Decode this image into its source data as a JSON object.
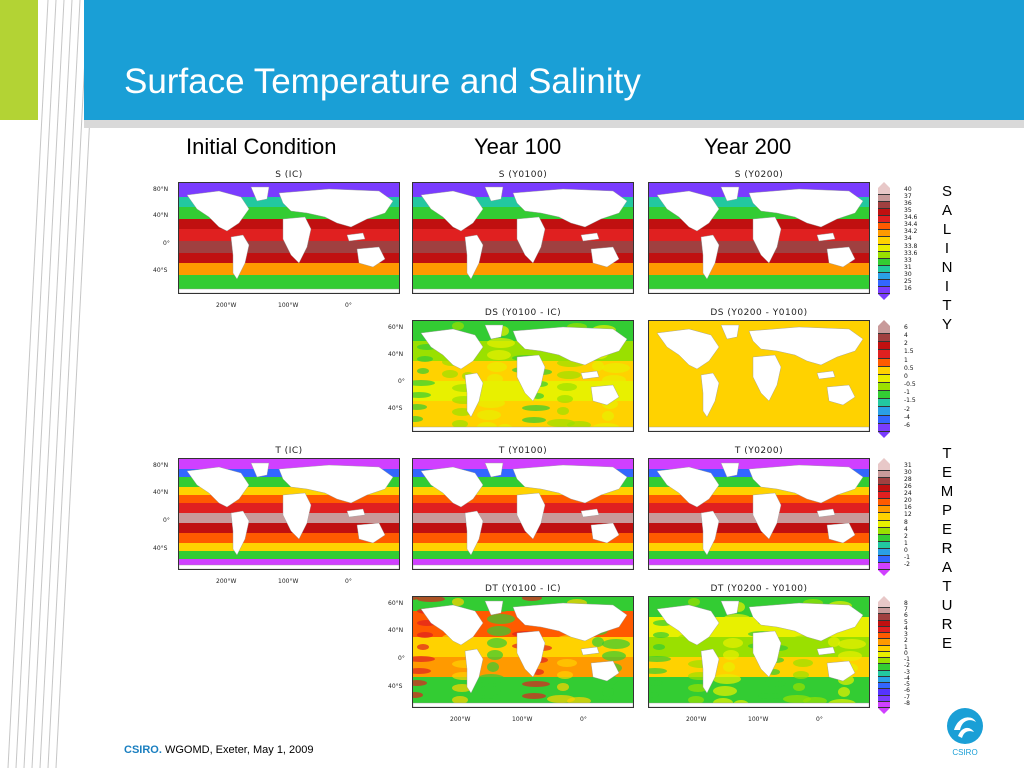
{
  "slide": {
    "title": "Surface Temperature and Salinity",
    "columns": [
      "Initial Condition",
      "Year 100",
      "Year 200"
    ],
    "vertical_salinity": [
      "S",
      "A",
      "L",
      "I",
      "N",
      "I",
      "T",
      "Y"
    ],
    "vertical_temperature": [
      "T",
      "E",
      "M",
      "P",
      "E",
      "R",
      "A",
      "T",
      "U",
      "R",
      "E"
    ]
  },
  "panels": [
    {
      "title": "S (IC)",
      "kind": "salinity"
    },
    {
      "title": "S (Y0100)",
      "kind": "salinity"
    },
    {
      "title": "S (Y0200)",
      "kind": "salinity"
    },
    {
      "title": "DS (Y0100 - IC)",
      "kind": "ds1"
    },
    {
      "title": "DS (Y0200 - Y0100)",
      "kind": "ds2"
    },
    {
      "title": "T (IC)",
      "kind": "temp"
    },
    {
      "title": "T (Y0100)",
      "kind": "temp"
    },
    {
      "title": "T (Y0200)",
      "kind": "temp"
    },
    {
      "title": "DT (Y0100 - IC)",
      "kind": "dt1"
    },
    {
      "title": "DT (Y0200 - Y0100)",
      "kind": "dt2"
    }
  ],
  "axes": {
    "lat_labels_a": [
      "80°N",
      "40°N",
      "0°",
      "40°S"
    ],
    "lat_labels_b": [
      "60°N",
      "40°N",
      "0°",
      "40°S"
    ],
    "lon_labels": [
      "200°W",
      "100°W",
      "0°"
    ]
  },
  "colorbars": {
    "salinity": {
      "labels": [
        "40",
        "37",
        "36",
        "35",
        "34.6",
        "34.4",
        "34.2",
        "34",
        "33.8",
        "33.6",
        "33",
        "31",
        "30",
        "25",
        "16"
      ],
      "colors": [
        "#e8c8c8",
        "#c89a9a",
        "#a04040",
        "#c01010",
        "#e02020",
        "#ff5a00",
        "#ff9a00",
        "#ffd200",
        "#e8f000",
        "#9ae000",
        "#33cc33",
        "#22c8a0",
        "#2aa0e6",
        "#3366ff",
        "#7a3cff"
      ]
    },
    "ds": {
      "labels": [
        "6",
        "4",
        "2",
        "1.5",
        "1",
        "0.5",
        "0",
        "-0.5",
        "-1",
        "-1.5",
        "-2",
        "-4",
        "-6"
      ],
      "colors": [
        "#c89a9a",
        "#a04040",
        "#c01010",
        "#e02020",
        "#ff5a00",
        "#ffd200",
        "#e8f000",
        "#9ae000",
        "#33cc33",
        "#22c8a0",
        "#2aa0e6",
        "#3366ff",
        "#7a3cff"
      ]
    },
    "temperature": {
      "labels": [
        "31",
        "30",
        "28",
        "26",
        "24",
        "20",
        "16",
        "12",
        "8",
        "4",
        "2",
        "1",
        "0",
        "-1",
        "-2"
      ],
      "colors": [
        "#e8c8c8",
        "#c89a9a",
        "#a04040",
        "#c01010",
        "#e02020",
        "#ff5a00",
        "#ff9a00",
        "#ffd200",
        "#e8f000",
        "#9ae000",
        "#33cc33",
        "#22c8a0",
        "#2aa0e6",
        "#3366ff",
        "#d040ff"
      ]
    },
    "dt": {
      "labels": [
        "8",
        "7",
        "6",
        "5",
        "4",
        "3",
        "2",
        "1",
        "0",
        "-1",
        "-2",
        "-3",
        "-4",
        "-5",
        "-6",
        "-7",
        "-8"
      ],
      "colors": [
        "#e8c8c8",
        "#c89a9a",
        "#a04040",
        "#c01010",
        "#e02020",
        "#ff5a00",
        "#ff9a00",
        "#ffd200",
        "#e8f000",
        "#9ae000",
        "#33cc33",
        "#22c8a0",
        "#2aa0e6",
        "#3366ff",
        "#5533ff",
        "#7a3cff",
        "#d040ff"
      ]
    }
  },
  "footer": {
    "brand": "CSIRO.",
    "text": "WGOMD, Exeter, May 1, 2009",
    "logo_text": "CSIRO"
  }
}
